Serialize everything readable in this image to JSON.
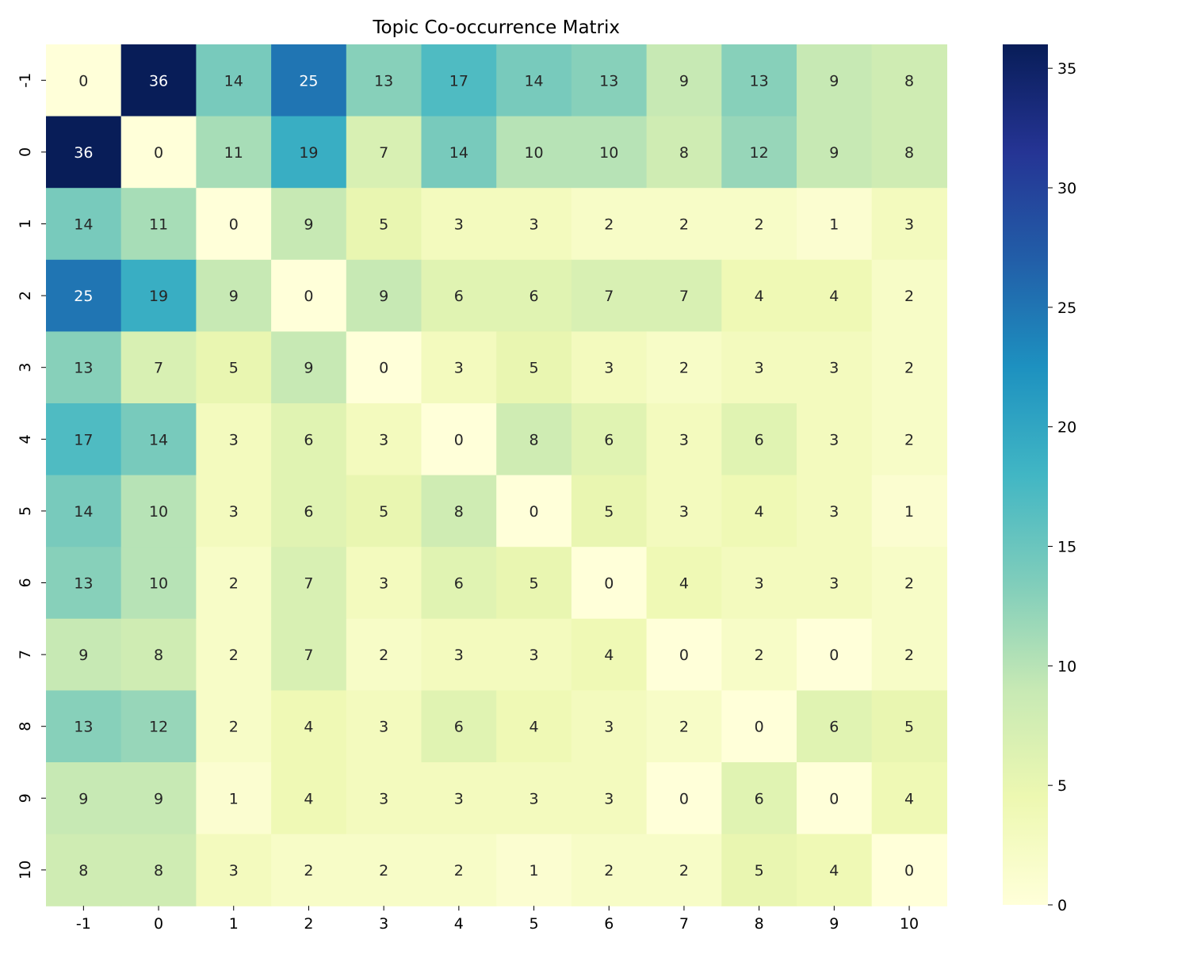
{
  "chart_data": {
    "type": "heatmap",
    "title": "Topic Co-occurrence Matrix",
    "xlabel": "",
    "ylabel": "",
    "x_labels": [
      "-1",
      "0",
      "1",
      "2",
      "3",
      "4",
      "5",
      "6",
      "7",
      "8",
      "9",
      "10"
    ],
    "y_labels": [
      "-1",
      "0",
      "1",
      "2",
      "3",
      "4",
      "5",
      "6",
      "7",
      "8",
      "9",
      "10"
    ],
    "values": [
      [
        0,
        36,
        14,
        25,
        13,
        17,
        14,
        13,
        9,
        13,
        9,
        8
      ],
      [
        36,
        0,
        11,
        19,
        7,
        14,
        10,
        10,
        8,
        12,
        9,
        8
      ],
      [
        14,
        11,
        0,
        9,
        5,
        3,
        3,
        2,
        2,
        2,
        1,
        3
      ],
      [
        25,
        19,
        9,
        0,
        9,
        6,
        6,
        7,
        7,
        4,
        4,
        2
      ],
      [
        13,
        7,
        5,
        9,
        0,
        3,
        5,
        3,
        2,
        3,
        3,
        2
      ],
      [
        17,
        14,
        3,
        6,
        3,
        0,
        8,
        6,
        3,
        6,
        3,
        2
      ],
      [
        14,
        10,
        3,
        6,
        5,
        8,
        0,
        5,
        3,
        4,
        3,
        1
      ],
      [
        13,
        10,
        2,
        7,
        3,
        6,
        5,
        0,
        4,
        3,
        3,
        2
      ],
      [
        9,
        8,
        2,
        7,
        2,
        3,
        3,
        4,
        0,
        2,
        0,
        2
      ],
      [
        13,
        12,
        2,
        4,
        3,
        6,
        4,
        3,
        2,
        0,
        6,
        5
      ],
      [
        9,
        9,
        1,
        4,
        3,
        3,
        3,
        3,
        0,
        6,
        0,
        4
      ],
      [
        8,
        8,
        3,
        2,
        2,
        2,
        1,
        2,
        2,
        5,
        4,
        0
      ]
    ],
    "colormap": "YlGnBu",
    "colormap_stops": [
      "#ffffd9",
      "#edf8b1",
      "#c7e9b4",
      "#7fcdbb",
      "#41b6c4",
      "#1d91c0",
      "#225ea8",
      "#253494",
      "#081d58"
    ],
    "vmin": 0,
    "vmax": 36,
    "annotate": true,
    "colorbar": {
      "ticks": [
        0,
        5,
        10,
        15,
        20,
        25,
        30,
        35
      ],
      "tick_labels": [
        "0",
        "5",
        "10",
        "15",
        "20",
        "25",
        "30",
        "35"
      ]
    }
  }
}
